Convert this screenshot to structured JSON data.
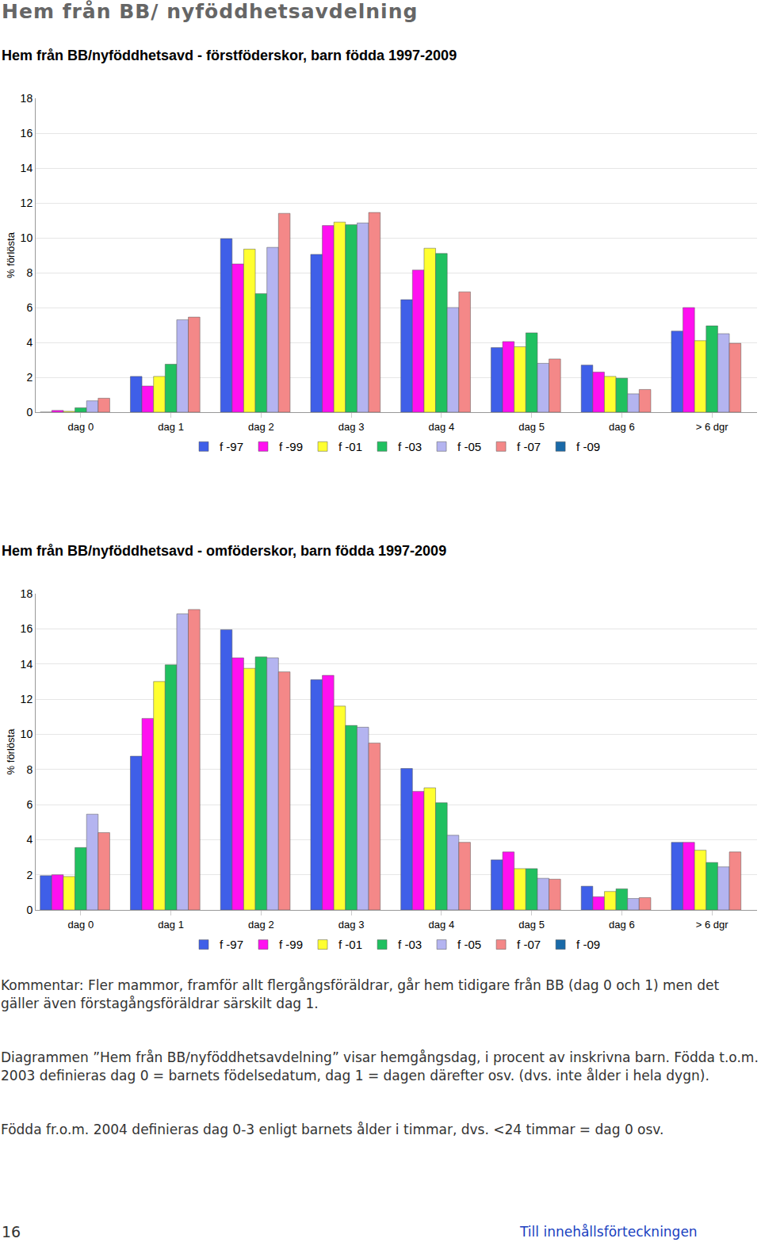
{
  "header": "Hem från BB/ nyföddhetsavdelning",
  "chart_data": [
    {
      "type": "bar",
      "title": "Hem från BB/nyföddhetsavd - förstföderskor, barn födda 1997-2009",
      "y_label": "% förlösta",
      "categories": [
        "dag 0",
        "dag 1",
        "dag 2",
        "dag 3",
        "dag 4",
        "dag 5",
        "dag 6",
        "> 6 dgr"
      ],
      "series": [
        {
          "name": "f -97",
          "color": "#3f5fe8",
          "values": [
            0,
            2.05,
            9.95,
            9.05,
            6.45,
            3.7,
            2.7,
            4.65
          ]
        },
        {
          "name": "f -99",
          "color": "#ff10f0",
          "values": [
            0.1,
            1.5,
            8.5,
            10.7,
            8.15,
            4.05,
            2.3,
            6.0
          ]
        },
        {
          "name": "f -01",
          "color": "#ffff30",
          "values": [
            0.05,
            2.05,
            9.35,
            10.9,
            9.4,
            3.75,
            2.05,
            4.1
          ]
        },
        {
          "name": "f -03",
          "color": "#20c060",
          "values": [
            0.25,
            2.75,
            6.8,
            10.75,
            9.1,
            4.55,
            1.95,
            4.95
          ]
        },
        {
          "name": "f -05",
          "color": "#b4b4f0",
          "values": [
            0.65,
            5.3,
            9.45,
            10.85,
            6.0,
            2.8,
            1.05,
            4.5
          ]
        },
        {
          "name": "f -07",
          "color": "#f48888",
          "values": [
            0.8,
            5.45,
            11.4,
            11.45,
            6.9,
            3.05,
            1.3,
            3.95
          ]
        },
        {
          "name": "f -09",
          "color": "#1a6aa8",
          "values": [
            null,
            null,
            null,
            null,
            null,
            null,
            null,
            null
          ]
        }
      ],
      "ylim": [
        0,
        18
      ],
      "yticks": [
        0,
        2,
        4,
        6,
        8,
        10,
        12,
        14,
        16,
        18
      ],
      "grid": true,
      "legend": "bottom"
    },
    {
      "type": "bar",
      "title": "Hem från BB/nyföddhetsavd - omföderskor, barn födda 1997-2009",
      "y_label": "% förlösta",
      "categories": [
        "dag 0",
        "dag 1",
        "dag 2",
        "dag 3",
        "dag 4",
        "dag 5",
        "dag 6",
        "> 6 dgr"
      ],
      "series": [
        {
          "name": "f -97",
          "color": "#3f5fe8",
          "values": [
            1.95,
            8.75,
            15.95,
            13.1,
            8.05,
            2.85,
            1.35,
            3.85
          ]
        },
        {
          "name": "f -99",
          "color": "#ff10f0",
          "values": [
            2.0,
            10.9,
            14.35,
            13.35,
            6.75,
            3.3,
            0.75,
            3.85
          ]
        },
        {
          "name": "f -01",
          "color": "#ffff30",
          "values": [
            1.9,
            13.0,
            13.75,
            11.6,
            6.95,
            2.35,
            1.05,
            3.4
          ]
        },
        {
          "name": "f -03",
          "color": "#20c060",
          "values": [
            3.55,
            13.95,
            14.4,
            10.5,
            6.1,
            2.35,
            1.2,
            2.7
          ]
        },
        {
          "name": "f -05",
          "color": "#b4b4f0",
          "values": [
            5.45,
            16.85,
            14.35,
            10.4,
            4.25,
            1.8,
            0.65,
            2.45
          ]
        },
        {
          "name": "f -07",
          "color": "#f48888",
          "values": [
            4.4,
            17.1,
            13.55,
            9.5,
            3.85,
            1.75,
            0.7,
            3.3
          ]
        },
        {
          "name": "f -09",
          "color": "#1a6aa8",
          "values": [
            null,
            null,
            null,
            null,
            null,
            null,
            null,
            null
          ]
        }
      ],
      "ylim": [
        0,
        18
      ],
      "yticks": [
        0,
        2,
        4,
        6,
        8,
        10,
        12,
        14,
        16,
        18
      ],
      "grid": true,
      "legend": "bottom"
    }
  ],
  "paragraphs": [
    "Kommentar: Fler mammor, framför allt flergångsföräldrar, går hem tidigare från BB (dag 0 och 1) men det gäller även förstagångsföräldrar särskilt dag 1.",
    "Diagrammen ”Hem från BB/nyföddhetsavdelning” visar hemgångsdag, i procent av inskrivna barn. Födda t.o.m. 2003 definieras dag 0 = barnets födelsedatum, dag 1 = dagen därefter osv. (dvs. inte ålder i hela dygn).",
    "Födda fr.o.m. 2004 definieras dag 0-3 enligt barnets ålder i timmar, dvs. <24 timmar = dag 0 osv."
  ],
  "page_number": "16",
  "link": "Till innehållsförteckningen"
}
